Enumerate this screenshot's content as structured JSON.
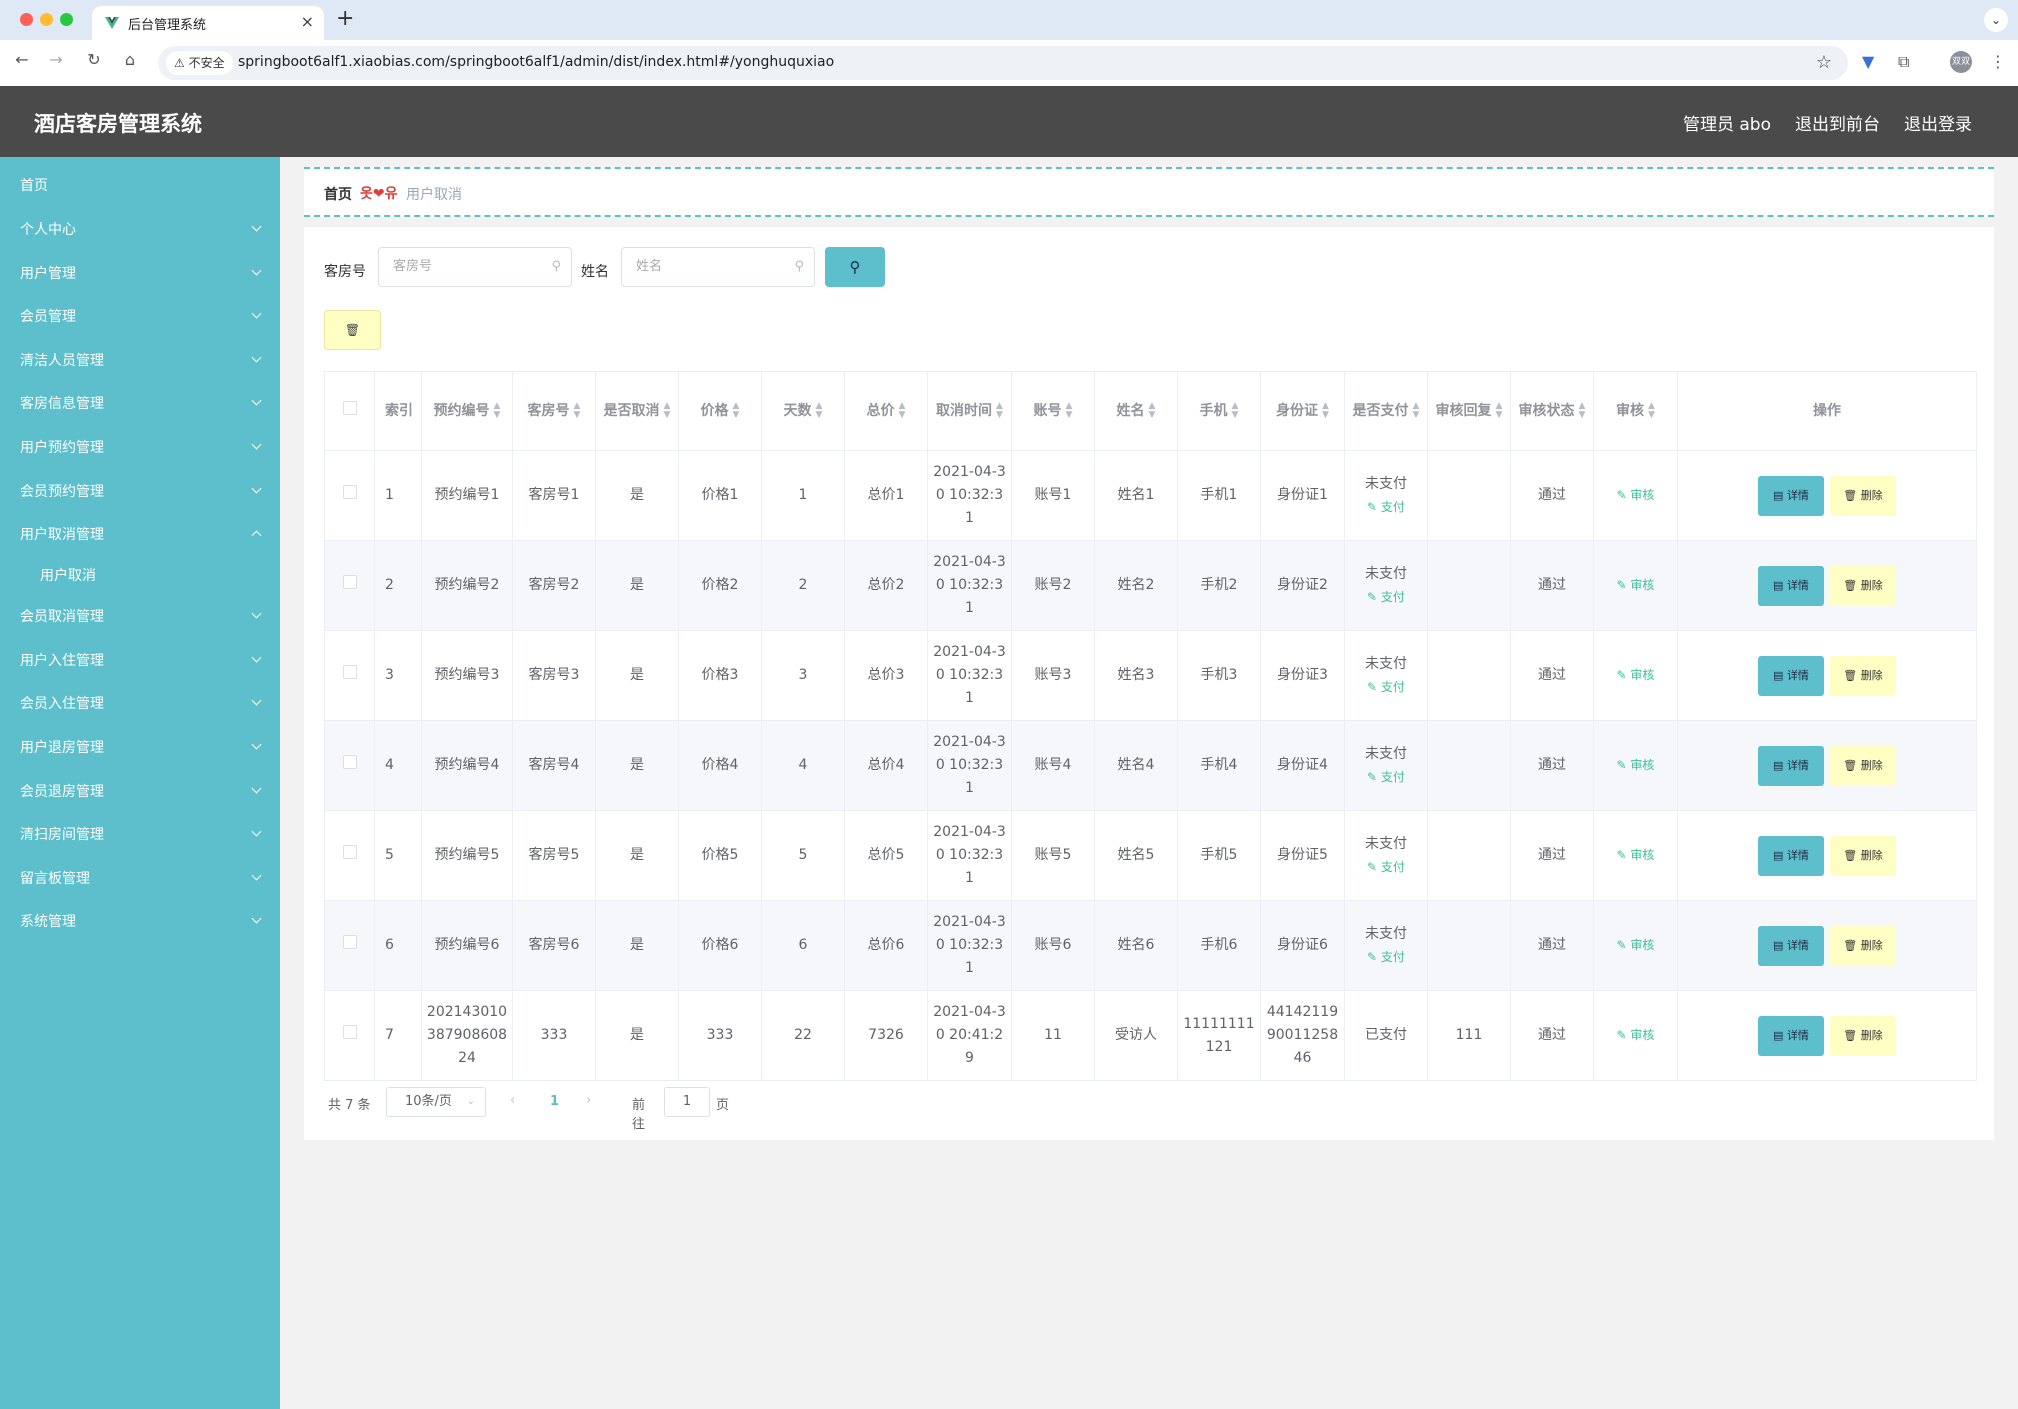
{
  "browser": {
    "tab_title": "后台管理系统",
    "security_label": "不安全",
    "url": "springboot6alf1.xiaobias.com/springboot6alf1/admin/dist/index.html#/yonghuquxiao",
    "profile_label": "双双"
  },
  "header": {
    "title": "酒店客房管理系统",
    "links": [
      "管理员 abo",
      "退出到前台",
      "退出登录"
    ]
  },
  "sidebar": {
    "items": [
      {
        "label": "首页",
        "expandable": false
      },
      {
        "label": "个人中心",
        "expandable": true
      },
      {
        "label": "用户管理",
        "expandable": true
      },
      {
        "label": "会员管理",
        "expandable": true
      },
      {
        "label": "清洁人员管理",
        "expandable": true
      },
      {
        "label": "客房信息管理",
        "expandable": true
      },
      {
        "label": "用户预约管理",
        "expandable": true
      },
      {
        "label": "会员预约管理",
        "expandable": true
      },
      {
        "label": "用户取消管理",
        "expandable": true,
        "expanded": true
      },
      {
        "label": "用户取消",
        "sub": true
      },
      {
        "label": "会员取消管理",
        "expandable": true
      },
      {
        "label": "用户入住管理",
        "expandable": true
      },
      {
        "label": "会员入住管理",
        "expandable": true
      },
      {
        "label": "用户退房管理",
        "expandable": true
      },
      {
        "label": "会员退房管理",
        "expandable": true
      },
      {
        "label": "清扫房间管理",
        "expandable": true
      },
      {
        "label": "留言板管理",
        "expandable": true
      },
      {
        "label": "系统管理",
        "expandable": true
      }
    ]
  },
  "breadcrumb": {
    "home": "首页",
    "separator": "옷❤유",
    "current": "用户取消"
  },
  "search": {
    "room_label": "客房号",
    "room_placeholder": "客房号",
    "name_label": "姓名",
    "name_placeholder": "姓名"
  },
  "table": {
    "headers": [
      "索引",
      "预约编号",
      "客房号",
      "是否取消",
      "价格",
      "天数",
      "总价",
      "取消时间",
      "账号",
      "姓名",
      "手机",
      "身份证",
      "是否支付",
      "审核回复",
      "审核状态",
      "审核",
      "操作"
    ],
    "pay_action": "支付",
    "audit_action": "审核",
    "detail_action": "详情",
    "delete_action": "删除",
    "rows": [
      {
        "index": "1",
        "booking_no": "预约编号1",
        "room": "客房号1",
        "cancelled": "是",
        "price": "价格1",
        "days": "1",
        "total": "总价1",
        "cancel_time": "2021-04-30 10:32:31",
        "account": "账号1",
        "name": "姓名1",
        "phone": "手机1",
        "id_card": "身份证1",
        "paid": "未支付",
        "show_pay": true,
        "reply": "",
        "status": "通过"
      },
      {
        "index": "2",
        "booking_no": "预约编号2",
        "room": "客房号2",
        "cancelled": "是",
        "price": "价格2",
        "days": "2",
        "total": "总价2",
        "cancel_time": "2021-04-30 10:32:31",
        "account": "账号2",
        "name": "姓名2",
        "phone": "手机2",
        "id_card": "身份证2",
        "paid": "未支付",
        "show_pay": true,
        "reply": "",
        "status": "通过"
      },
      {
        "index": "3",
        "booking_no": "预约编号3",
        "room": "客房号3",
        "cancelled": "是",
        "price": "价格3",
        "days": "3",
        "total": "总价3",
        "cancel_time": "2021-04-30 10:32:31",
        "account": "账号3",
        "name": "姓名3",
        "phone": "手机3",
        "id_card": "身份证3",
        "paid": "未支付",
        "show_pay": true,
        "reply": "",
        "status": "通过"
      },
      {
        "index": "4",
        "booking_no": "预约编号4",
        "room": "客房号4",
        "cancelled": "是",
        "price": "价格4",
        "days": "4",
        "total": "总价4",
        "cancel_time": "2021-04-30 10:32:31",
        "account": "账号4",
        "name": "姓名4",
        "phone": "手机4",
        "id_card": "身份证4",
        "paid": "未支付",
        "show_pay": true,
        "reply": "",
        "status": "通过"
      },
      {
        "index": "5",
        "booking_no": "预约编号5",
        "room": "客房号5",
        "cancelled": "是",
        "price": "价格5",
        "days": "5",
        "total": "总价5",
        "cancel_time": "2021-04-30 10:32:31",
        "account": "账号5",
        "name": "姓名5",
        "phone": "手机5",
        "id_card": "身份证5",
        "paid": "未支付",
        "show_pay": true,
        "reply": "",
        "status": "通过"
      },
      {
        "index": "6",
        "booking_no": "预约编号6",
        "room": "客房号6",
        "cancelled": "是",
        "price": "价格6",
        "days": "6",
        "total": "总价6",
        "cancel_time": "2021-04-30 10:32:31",
        "account": "账号6",
        "name": "姓名6",
        "phone": "手机6",
        "id_card": "身份证6",
        "paid": "未支付",
        "show_pay": true,
        "reply": "",
        "status": "通过"
      },
      {
        "index": "7",
        "booking_no": "20214301038790860824",
        "room": "333",
        "cancelled": "是",
        "price": "333",
        "days": "22",
        "total": "7326",
        "cancel_time": "2021-04-30 20:41:29",
        "account": "11",
        "name": "受访人",
        "phone": "11111111121",
        "id_card": "441421199001125846",
        "paid": "已支付",
        "show_pay": false,
        "reply": "111",
        "status": "通过"
      }
    ]
  },
  "pagination": {
    "total": "共 7 条",
    "page_size": "10条/页",
    "current_page": "1",
    "goto_label": "前往",
    "goto_value": "1",
    "goto_unit": "页"
  },
  "colors": {
    "accent": "#5cbfcb",
    "header_bg": "#4a4a4a",
    "link_green": "#3ec09a",
    "delete_bg": "#ffffc4"
  }
}
